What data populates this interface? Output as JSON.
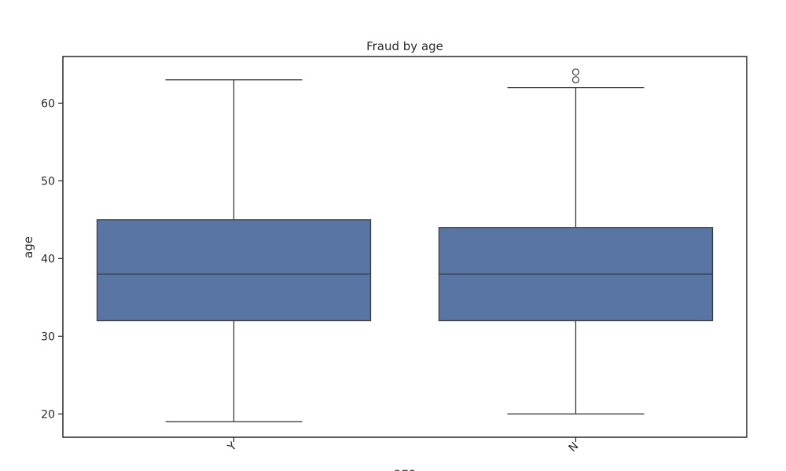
{
  "chart_data": {
    "type": "box",
    "title": "Fraud by age",
    "xlabel": "age",
    "ylabel": "age",
    "ylim": [
      17,
      66
    ],
    "yticks": [
      20,
      30,
      40,
      50,
      60
    ],
    "categories": [
      "Y",
      "N"
    ],
    "boxes": [
      {
        "category": "Y",
        "whisker_low": 19,
        "q1": 32,
        "median": 38,
        "q3": 45,
        "whisker_high": 63,
        "outliers": []
      },
      {
        "category": "N",
        "whisker_low": 20,
        "q1": 32,
        "median": 38,
        "q3": 44,
        "whisker_high": 62,
        "outliers": [
          63,
          64
        ]
      }
    ],
    "box_color": "#5875a4",
    "line_color": "#3f3f3f"
  }
}
